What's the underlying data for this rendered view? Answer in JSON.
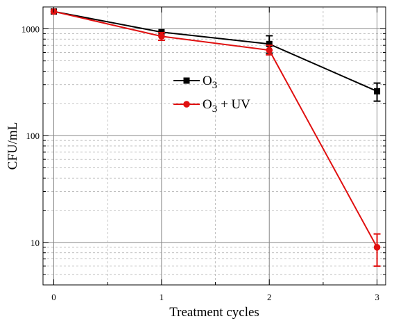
{
  "chart_data": {
    "type": "line",
    "title": "",
    "xlabel": "Treatment cycles",
    "ylabel": "CFU/mL",
    "yscale": "log",
    "xlim": [
      -0.1,
      3.08
    ],
    "ylim": [
      4,
      1600
    ],
    "x_ticks": [
      0,
      1,
      2,
      3
    ],
    "x_tick_labels": [
      "0",
      "1",
      "2",
      "3"
    ],
    "y_ticks": [
      10,
      100,
      1000
    ],
    "y_tick_labels": [
      "10",
      "100",
      "1000"
    ],
    "grid": true,
    "legend_position": "center",
    "series": [
      {
        "name_base": "O",
        "name_sub": "3",
        "name_suffix": "",
        "color": "#000000",
        "marker": "square",
        "x": [
          0,
          1,
          2,
          3
        ],
        "values": [
          1450,
          930,
          720,
          260
        ],
        "err_low": [
          1450,
          930,
          590,
          210
        ],
        "err_high": [
          1450,
          930,
          860,
          310
        ]
      },
      {
        "name_base": "O",
        "name_sub": "3",
        "name_suffix": " + UV",
        "color": "#e01010",
        "marker": "circle",
        "x": [
          0,
          1,
          2,
          3
        ],
        "values": [
          1450,
          850,
          630,
          9
        ],
        "err_low": [
          1450,
          780,
          570,
          6
        ],
        "err_high": [
          1450,
          920,
          700,
          12
        ]
      }
    ]
  }
}
